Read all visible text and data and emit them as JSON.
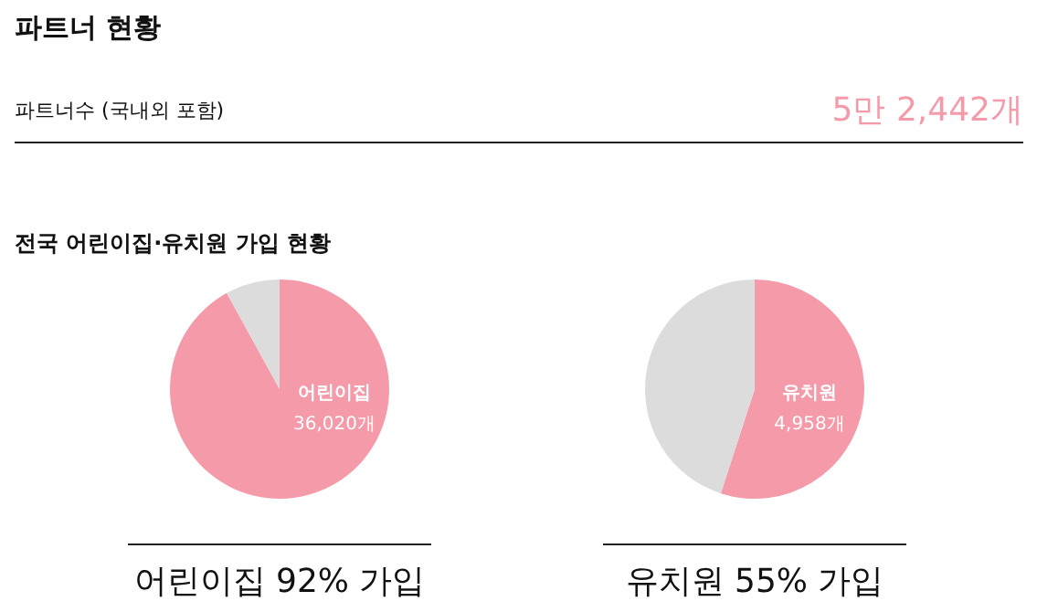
{
  "chart_data": [
    {
      "type": "other",
      "title": "파트너 현황",
      "annotations": [
        "파트너수 (국내외 포함)",
        "5만 2,442개"
      ]
    },
    {
      "type": "pie",
      "title": "전국 어린이집·유치원 가입 현황",
      "categories": [
        "어린이집",
        null
      ],
      "values": [
        92,
        8
      ],
      "colors": [
        "#f59aa9",
        "#dcdcdc"
      ],
      "annotations": [
        "36,020개",
        "어린이집 92% 가입"
      ]
    },
    {
      "type": "pie",
      "categories": [
        "유치원",
        null
      ],
      "values": [
        55,
        45
      ],
      "colors": [
        "#f59aa9",
        "#dcdcdc"
      ],
      "annotations": [
        "4,958개",
        "유치원 55% 가입"
      ]
    }
  ]
}
